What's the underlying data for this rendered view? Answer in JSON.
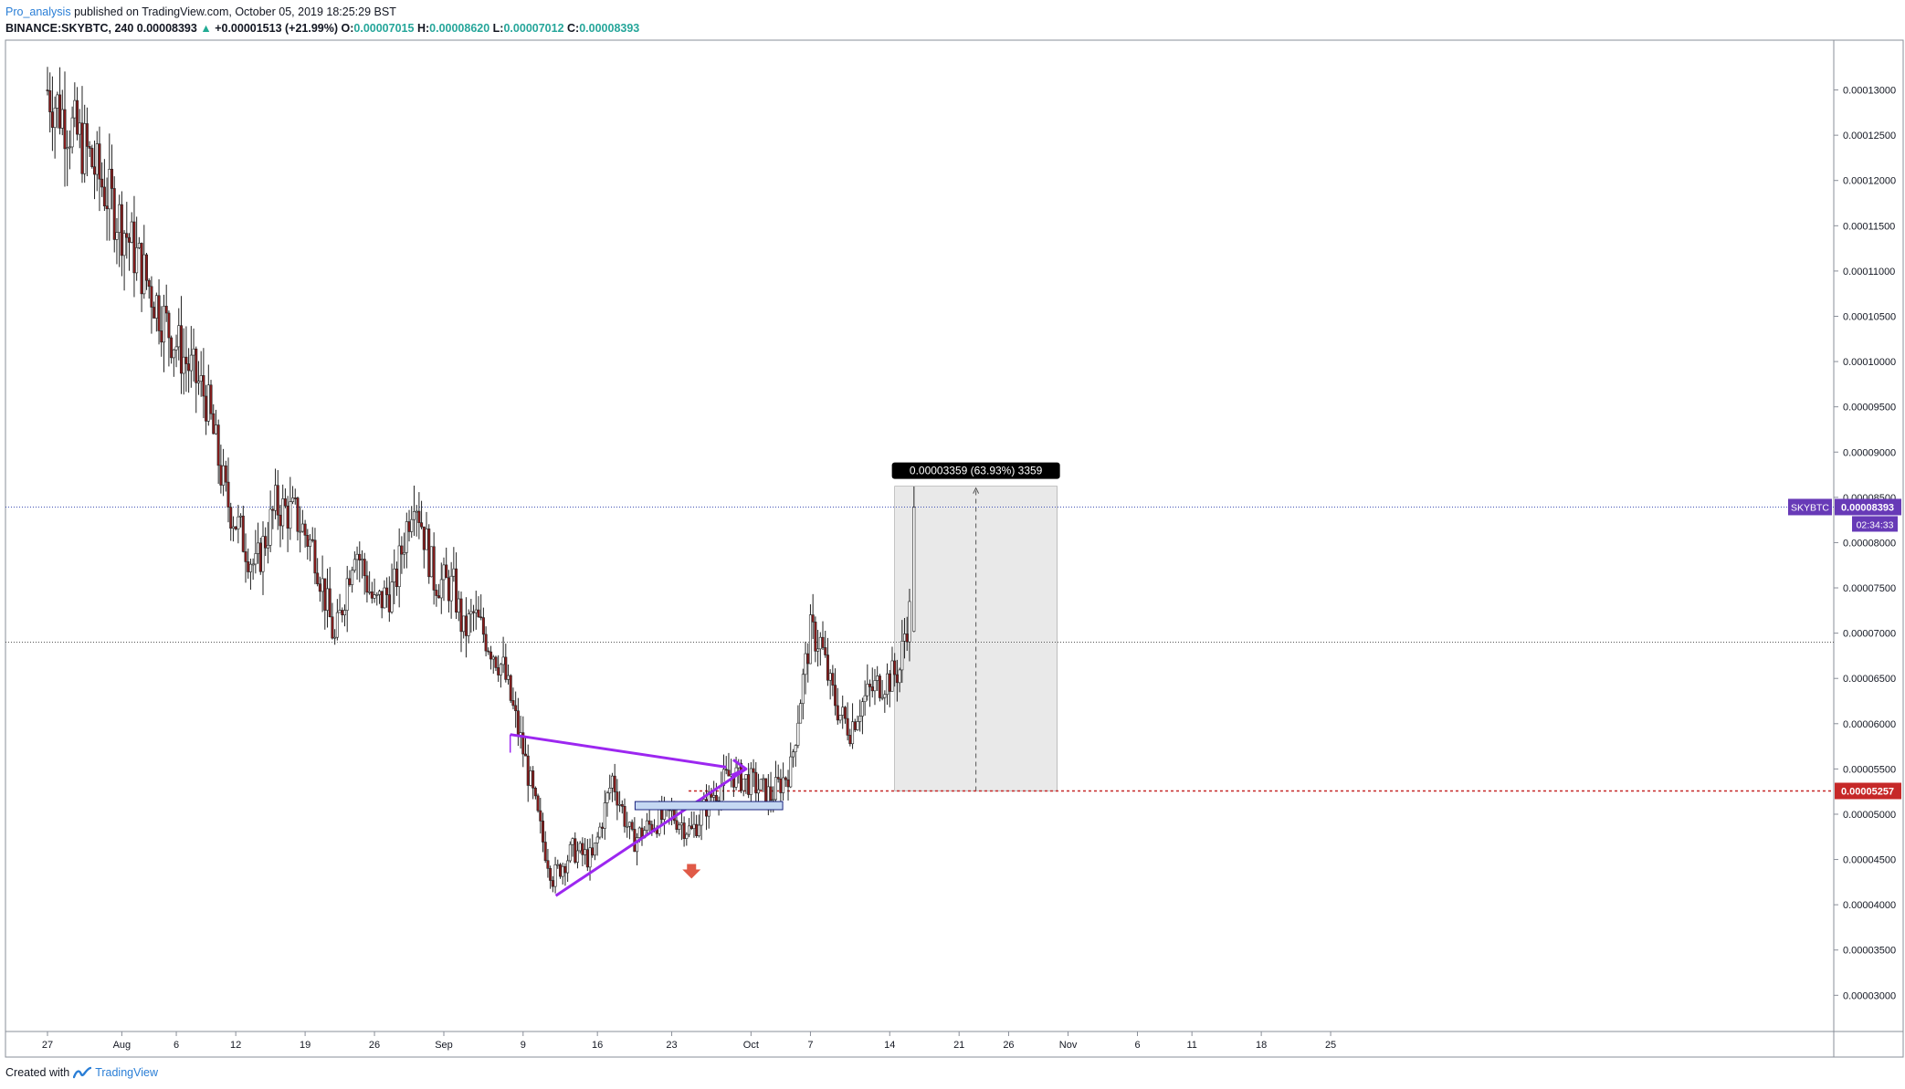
{
  "header": {
    "author": "Pro_analysis",
    "published_text": "published on TradingView.com, October 05, 2019 18:25:29 BST",
    "symbol": "BINANCE:SKYBTC, 240",
    "last": "0.00008393",
    "change_arrow": "▲",
    "change": "+0.00001513 (+21.99%)",
    "o_label": "O:",
    "o_value": "0.00007015",
    "h_label": "H:",
    "h_value": "0.00008620",
    "l_label": "L:",
    "l_value": "0.00007012",
    "c_label": "C:",
    "c_value": "0.00008393"
  },
  "footer": {
    "created_with": "Created with",
    "brand": "TradingView",
    "logo_icon": "tradingview-logo-icon"
  },
  "colors": {
    "up": "#26a69a",
    "down": "#ef5350",
    "candle_body_down": "#8b1c1c",
    "triangle": "#9c27f0",
    "symbol_label": "#673ab7",
    "stop_line": "#c62828",
    "measure_box": "#e9e9e9",
    "support_box": "#c5d8f3",
    "arrow_marker": "#e05a47"
  },
  "chart_data": {
    "type": "candlestick",
    "title": "BINANCE:SKYBTC, 240",
    "ylim": [
      2.6e-05,
      0.0001355
    ],
    "y_ticks": [
      "0.00013000",
      "0.00012500",
      "0.00012000",
      "0.00011500",
      "0.00011000",
      "0.00010500",
      "0.00010000",
      "0.00009500",
      "0.00009000",
      "0.00008500",
      "0.00008000",
      "0.00007500",
      "0.00007000",
      "0.00006500",
      "0.00006000",
      "0.00005500",
      "0.00005000",
      "0.00004500",
      "0.00004000",
      "0.00003500",
      "0.00003000"
    ],
    "x_ticks": [
      "27",
      "Aug",
      "6",
      "12",
      "19",
      "26",
      "Sep",
      "9",
      "16",
      "23",
      "Oct",
      "7",
      "14",
      "21",
      "26",
      "Nov",
      "6",
      "11",
      "18",
      "25"
    ],
    "close_path": [
      [
        0,
        0.00013
      ],
      [
        4,
        0.000123
      ],
      [
        8,
        0.000114
      ],
      [
        12,
        0.000104
      ],
      [
        16,
        9.6e-05
      ],
      [
        18,
        8.5e-05
      ],
      [
        21,
        7.7e-05
      ],
      [
        23,
        8.4e-05
      ],
      [
        25,
        8.3e-05
      ],
      [
        27,
        7.9e-05
      ],
      [
        29,
        6.9e-05
      ],
      [
        31,
        8e-05
      ],
      [
        33,
        7.3e-05
      ],
      [
        35,
        7.5e-05
      ],
      [
        37,
        8.6e-05
      ],
      [
        39,
        7.6e-05
      ],
      [
        41,
        7.5e-05
      ],
      [
        42,
        7e-05
      ],
      [
        43,
        7.2e-05
      ],
      [
        46,
        6.6e-05
      ],
      [
        48,
        5.7e-05
      ],
      [
        50,
        4.7e-05
      ],
      [
        51,
        4.3e-05
      ],
      [
        53,
        4.6e-05
      ],
      [
        55,
        4.5e-05
      ],
      [
        57,
        5.4e-05
      ],
      [
        59,
        4.7e-05
      ],
      [
        61,
        4.9e-05
      ],
      [
        63,
        5e-05
      ],
      [
        65,
        4.8e-05
      ],
      [
        67,
        5.2e-05
      ],
      [
        69,
        5.45e-05
      ],
      [
        71,
        5.35e-05
      ],
      [
        73,
        5.2e-05
      ],
      [
        75,
        5.5e-05
      ],
      [
        76,
        6.3e-05
      ],
      [
        77,
        7e-05
      ],
      [
        78,
        6.9e-05
      ],
      [
        79,
        6.4e-05
      ],
      [
        80,
        6.1e-05
      ],
      [
        81,
        5.95e-05
      ],
      [
        82,
        6.2e-05
      ],
      [
        83,
        6.35e-05
      ],
      [
        84,
        6.45e-05
      ],
      [
        85,
        6.5e-05
      ],
      [
        86,
        6.6e-05
      ],
      [
        86.5,
        7e-05
      ],
      [
        87,
        7.22e-05
      ],
      [
        87.2,
        8.39e-05
      ]
    ],
    "current_price": "0.00008393",
    "current_price_symbol": "SKYBTC",
    "countdown": "02:34:33",
    "stop_price": "0.00005257",
    "measure_label": "0.00003359 (63.93%) 3359",
    "annotations": [
      "triangle pattern",
      "support box",
      "down arrow marker",
      "price range measure"
    ]
  }
}
